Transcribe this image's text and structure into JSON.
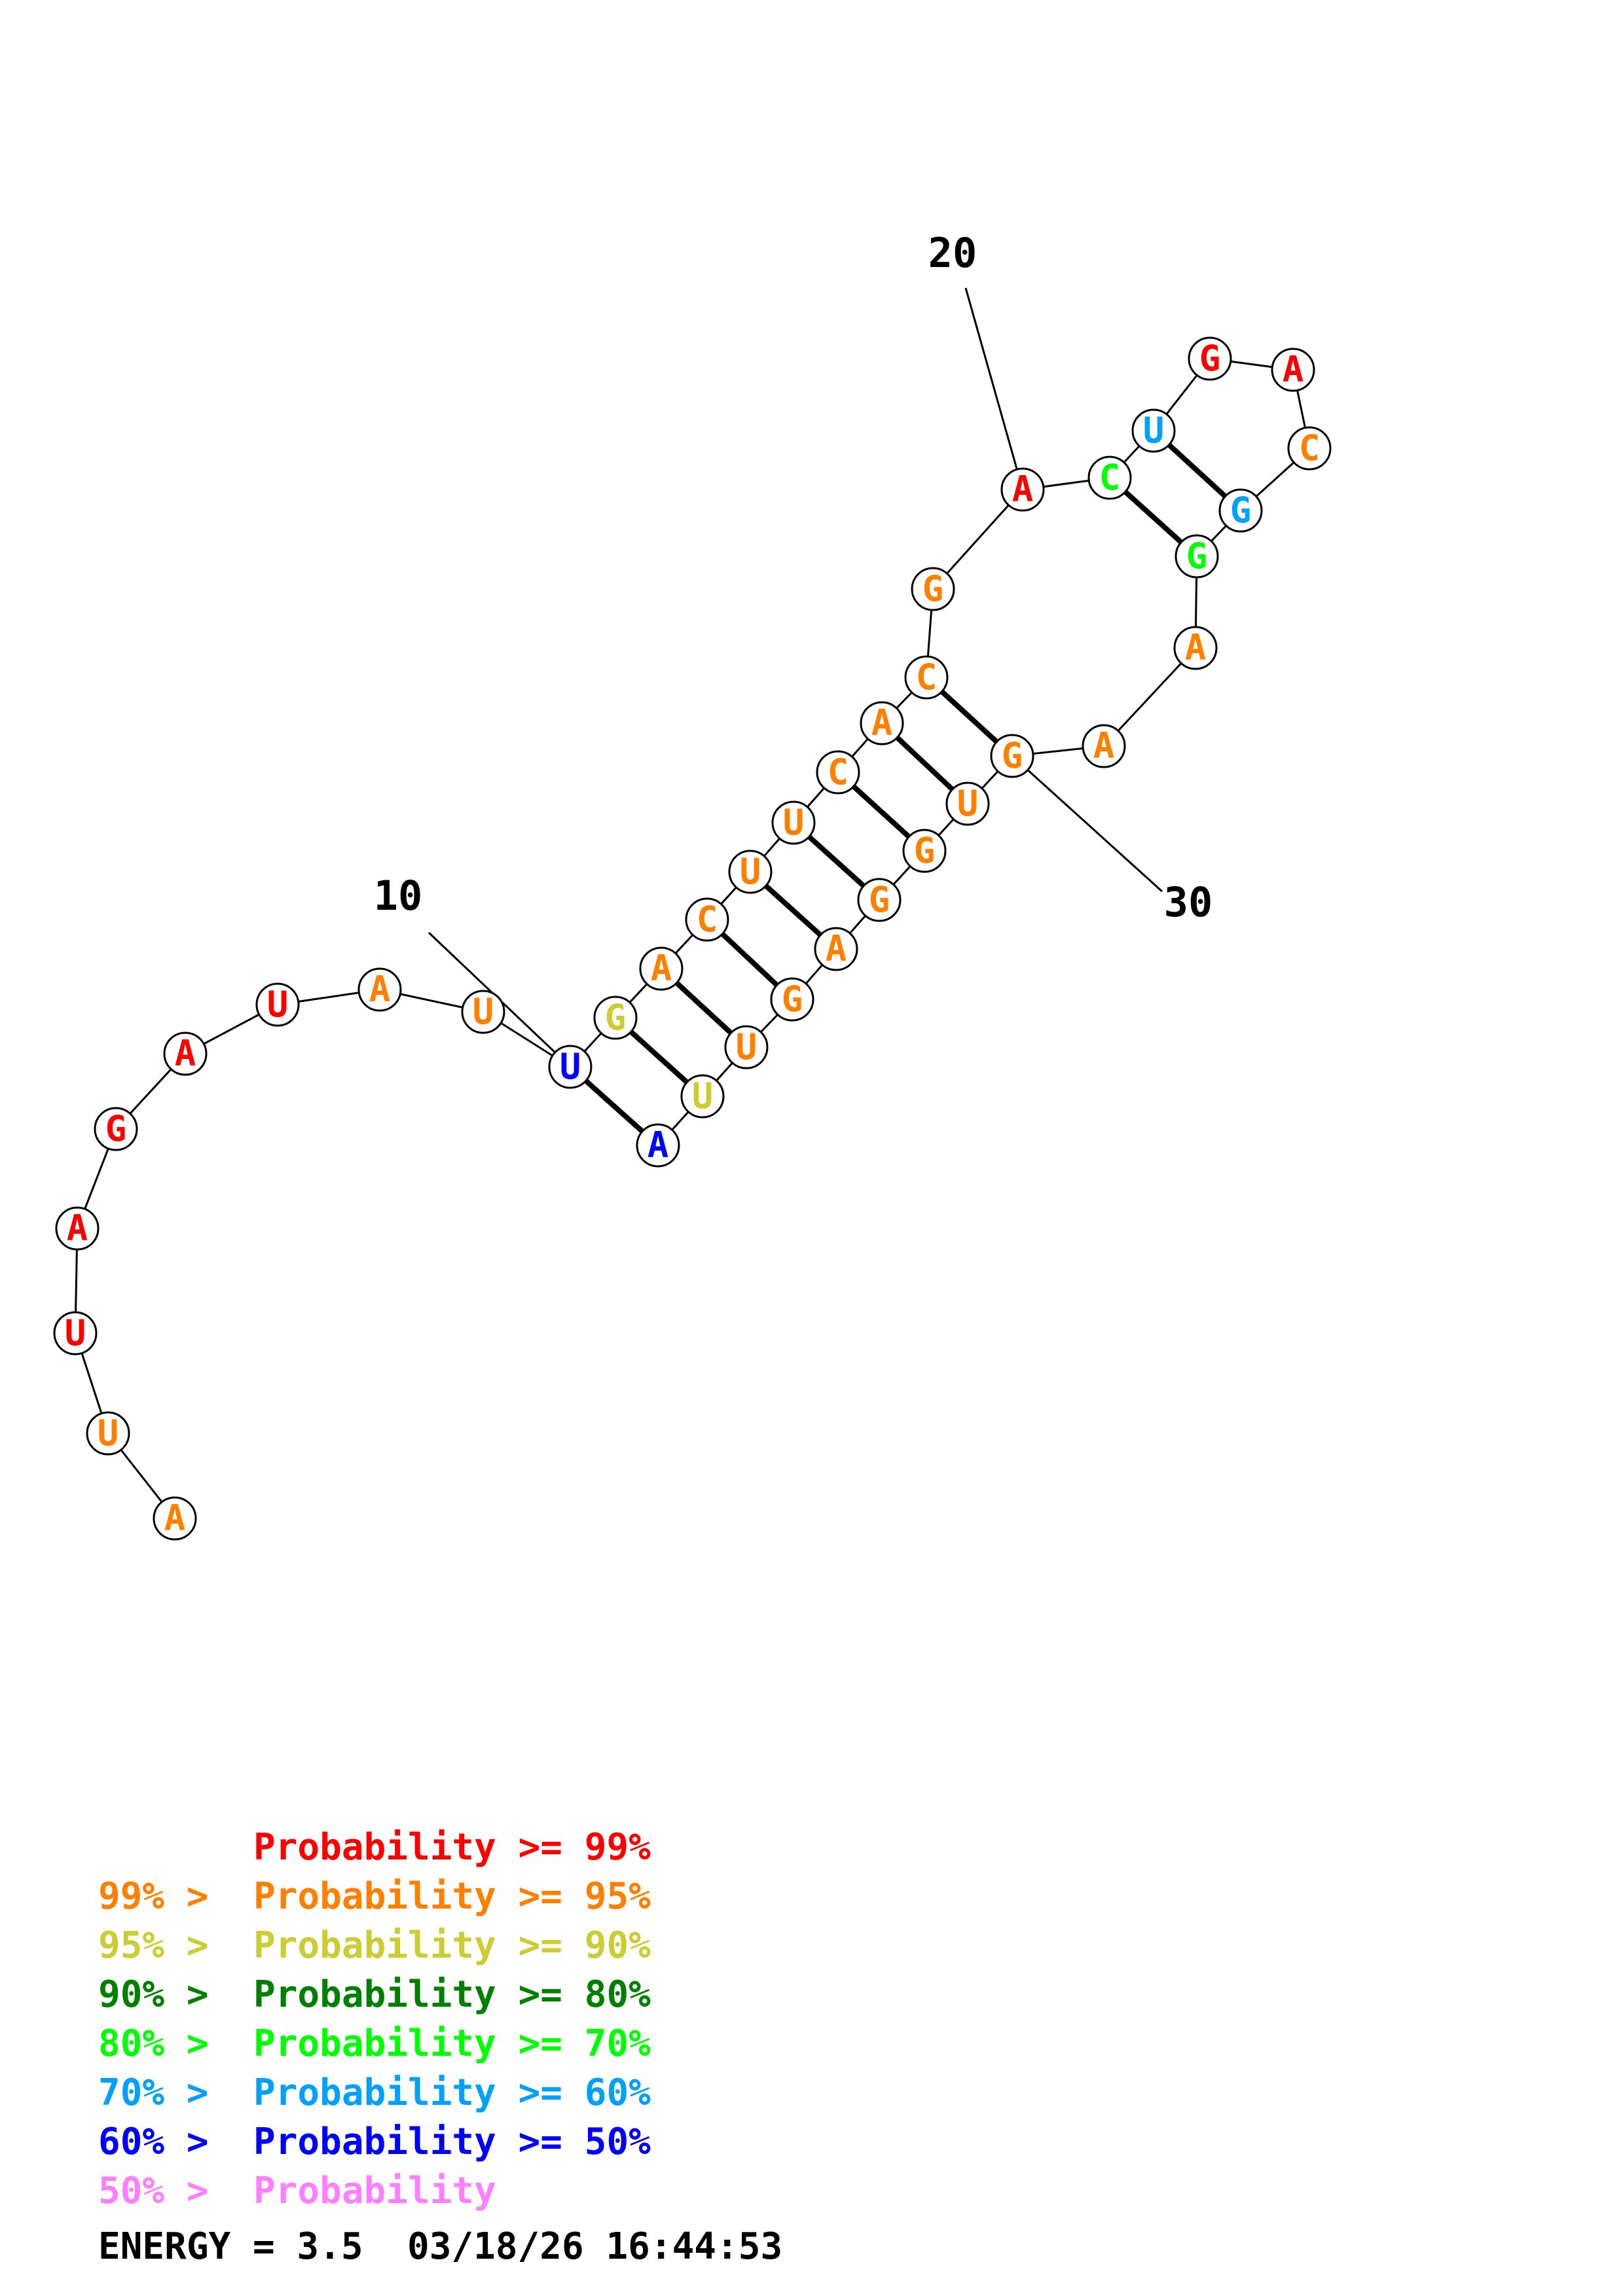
{
  "colors": {
    "p99": "#ff0000",
    "p95": "#ff8000",
    "p90": "#cccc33",
    "p80": "#008000",
    "p70": "#00ff00",
    "p60": "#00a0ff",
    "p50": "#0000ff",
    "plow": "#ff80ff"
  },
  "structure": {
    "nucleotides": [
      {
        "n": 1,
        "base": "A",
        "prob": "p95"
      },
      {
        "n": 2,
        "base": "U",
        "prob": "p95"
      },
      {
        "n": 3,
        "base": "U",
        "prob": "p99"
      },
      {
        "n": 4,
        "base": "A",
        "prob": "p99"
      },
      {
        "n": 5,
        "base": "G",
        "prob": "p99"
      },
      {
        "n": 6,
        "base": "A",
        "prob": "p99"
      },
      {
        "n": 7,
        "base": "U",
        "prob": "p99"
      },
      {
        "n": 8,
        "base": "A",
        "prob": "p95"
      },
      {
        "n": 9,
        "base": "U",
        "prob": "p95"
      },
      {
        "n": 10,
        "base": "U",
        "prob": "p50"
      },
      {
        "n": 11,
        "base": "G",
        "prob": "p90"
      },
      {
        "n": 12,
        "base": "A",
        "prob": "p95"
      },
      {
        "n": 13,
        "base": "C",
        "prob": "p95"
      },
      {
        "n": 14,
        "base": "U",
        "prob": "p95"
      },
      {
        "n": 15,
        "base": "U",
        "prob": "p95"
      },
      {
        "n": 16,
        "base": "C",
        "prob": "p95"
      },
      {
        "n": 17,
        "base": "A",
        "prob": "p95"
      },
      {
        "n": 18,
        "base": "C",
        "prob": "p95"
      },
      {
        "n": 19,
        "base": "G",
        "prob": "p95"
      },
      {
        "n": 20,
        "base": "A",
        "prob": "p99"
      },
      {
        "n": 21,
        "base": "C",
        "prob": "p70"
      },
      {
        "n": 22,
        "base": "U",
        "prob": "p60"
      },
      {
        "n": 23,
        "base": "G",
        "prob": "p99"
      },
      {
        "n": 24,
        "base": "A",
        "prob": "p99"
      },
      {
        "n": 25,
        "base": "C",
        "prob": "p95"
      },
      {
        "n": 26,
        "base": "G",
        "prob": "p60"
      },
      {
        "n": 27,
        "base": "G",
        "prob": "p70"
      },
      {
        "n": 28,
        "base": "A",
        "prob": "p95"
      },
      {
        "n": 29,
        "base": "A",
        "prob": "p95"
      },
      {
        "n": 30,
        "base": "G",
        "prob": "p95"
      },
      {
        "n": 31,
        "base": "U",
        "prob": "p95"
      },
      {
        "n": 32,
        "base": "G",
        "prob": "p95"
      },
      {
        "n": 33,
        "base": "G",
        "prob": "p95"
      },
      {
        "n": 34,
        "base": "A",
        "prob": "p95"
      },
      {
        "n": 35,
        "base": "G",
        "prob": "p95"
      },
      {
        "n": 36,
        "base": "U",
        "prob": "p95"
      },
      {
        "n": 37,
        "base": "U",
        "prob": "p90"
      },
      {
        "n": 38,
        "base": "A",
        "prob": "p50"
      }
    ],
    "pairs": [
      [
        10,
        38
      ],
      [
        11,
        37
      ],
      [
        12,
        36
      ],
      [
        13,
        35
      ],
      [
        14,
        34
      ],
      [
        15,
        33
      ],
      [
        16,
        32
      ],
      [
        17,
        31
      ],
      [
        18,
        30
      ],
      [
        21,
        27
      ],
      [
        22,
        26
      ]
    ],
    "position_labels": [
      {
        "nt": 10,
        "text": "10"
      },
      {
        "nt": 20,
        "text": "20"
      },
      {
        "nt": 30,
        "text": "30"
      }
    ]
  },
  "legend": [
    {
      "prefix": "",
      "text": "Probability >= 99%",
      "color_key": "p99"
    },
    {
      "prefix": "99% > ",
      "text": "Probability >= 95%",
      "color_key": "p95"
    },
    {
      "prefix": "95% > ",
      "text": "Probability >= 90%",
      "color_key": "p90"
    },
    {
      "prefix": "90% > ",
      "text": "Probability >= 80%",
      "color_key": "p80"
    },
    {
      "prefix": "80% > ",
      "text": "Probability >= 70%",
      "color_key": "p70"
    },
    {
      "prefix": "70% > ",
      "text": "Probability >= 60%",
      "color_key": "p60"
    },
    {
      "prefix": "60% > ",
      "text": "Probability >= 50%",
      "color_key": "p50"
    },
    {
      "prefix": "50% > ",
      "text": "Probability",
      "color_key": "plow"
    }
  ],
  "footer": {
    "energy": "ENERGY = 3.5",
    "timestamp": "03/18/26 16:44:53"
  }
}
